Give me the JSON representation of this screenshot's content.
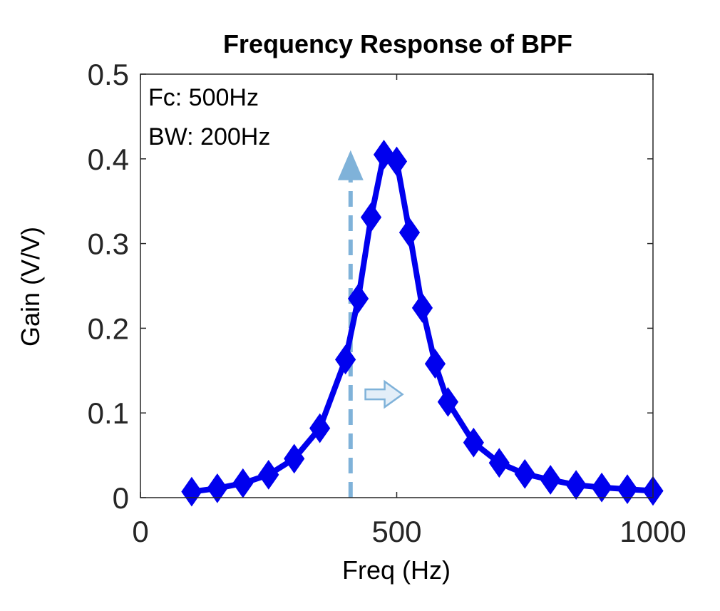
{
  "chart_data": {
    "type": "line",
    "title": "Frequency Response of BPF",
    "xlabel": "Freq (Hz)",
    "ylabel": "Gain (V/V)",
    "xlim": [
      0,
      1000
    ],
    "ylim": [
      0,
      0.5
    ],
    "xticks": [
      "0",
      "500",
      "1000"
    ],
    "yticks": [
      "0",
      "0.1",
      "0.2",
      "0.3",
      "0.4",
      "0.5"
    ],
    "grid": false,
    "series": [
      {
        "color": "#0000ee",
        "marker": "diamond",
        "x": [
          100,
          150,
          200,
          250,
          300,
          350,
          400,
          425,
          450,
          475,
          500,
          525,
          550,
          575,
          600,
          650,
          700,
          750,
          800,
          850,
          900,
          950,
          1000
        ],
        "y": [
          0.007,
          0.011,
          0.017,
          0.027,
          0.046,
          0.082,
          0.163,
          0.235,
          0.331,
          0.405,
          0.397,
          0.313,
          0.224,
          0.158,
          0.113,
          0.065,
          0.041,
          0.028,
          0.021,
          0.015,
          0.012,
          0.01,
          0.008
        ]
      }
    ],
    "annotations": {
      "text_lines": [
        "Fc: 500Hz",
        "BW: 200Hz"
      ],
      "dashed_arrow": {
        "x": 410,
        "y_from": 0,
        "y_to": 0.4,
        "color": "#7fb2d9"
      },
      "hollow_arrow": {
        "x": 425,
        "y": 0.122,
        "direction": "right",
        "color": "#7fb2d9"
      }
    }
  }
}
